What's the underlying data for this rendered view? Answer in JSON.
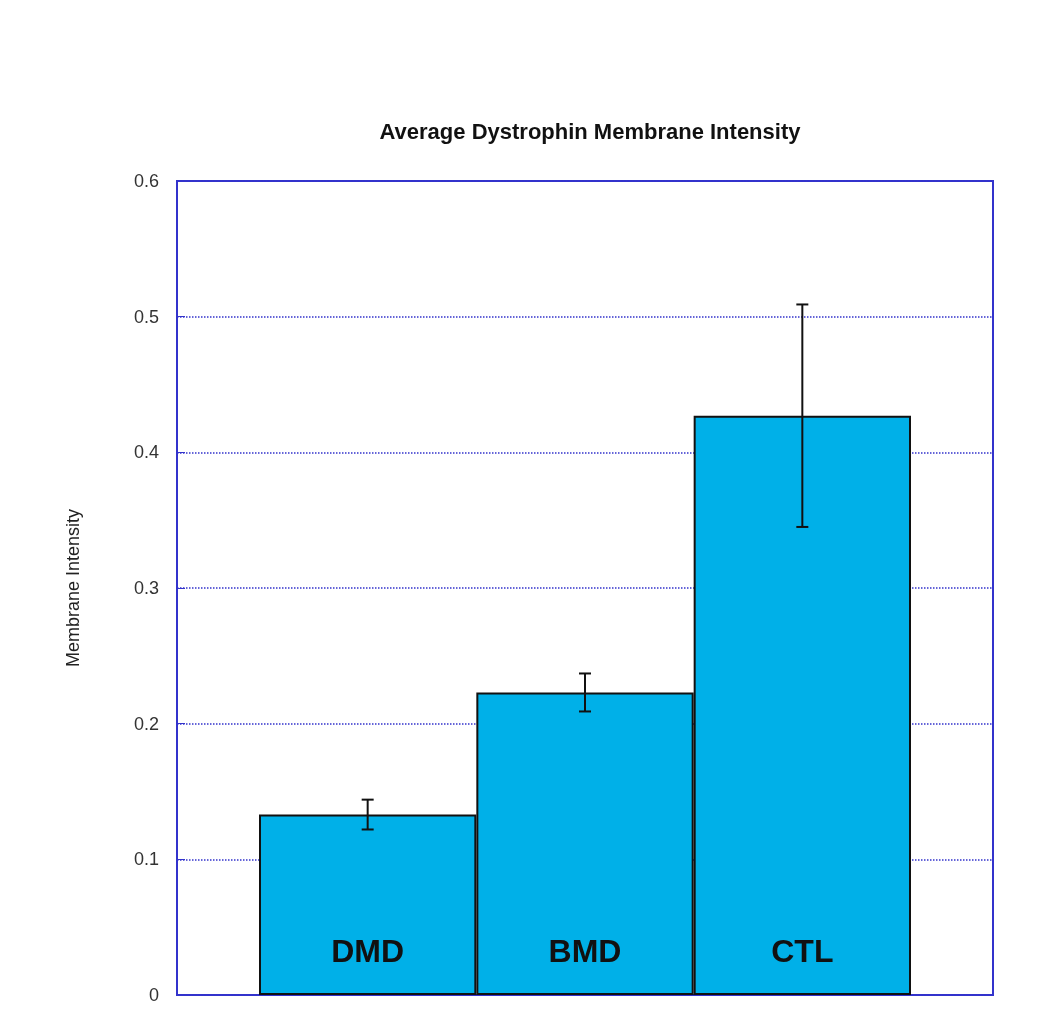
{
  "chart_data": {
    "type": "bar",
    "title": "Average Dystrophin Membrane Intensity",
    "ylabel": "Membrane Intensity",
    "categories": [
      "DMD",
      "BMD",
      "CTL"
    ],
    "values": [
      0.133,
      0.223,
      0.427
    ],
    "errors": [
      0.011,
      0.014,
      0.082
    ],
    "color": "#00b0e8",
    "ylim": [
      0,
      0.6
    ],
    "yticks": [
      0,
      0.1,
      0.2,
      0.3,
      0.4,
      0.5,
      0.6
    ],
    "grid": "y"
  }
}
